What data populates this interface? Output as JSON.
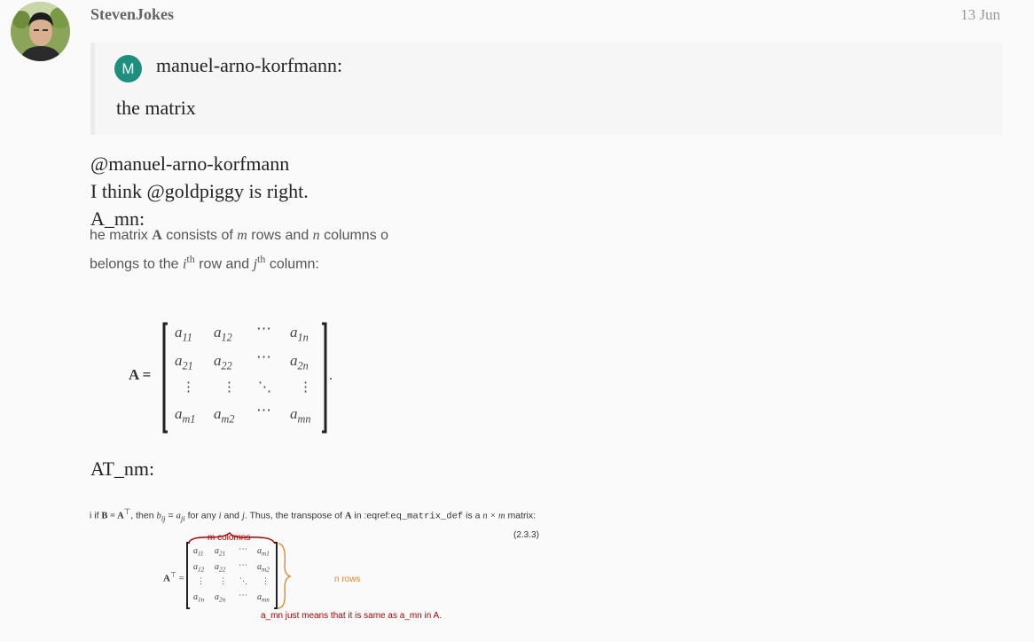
{
  "post": {
    "username": "StevenJokes",
    "date": "13 Jun",
    "avatar_icon": "user-avatar-photo"
  },
  "quote": {
    "avatar_letter": "M",
    "avatar_color": "#1e8e7e",
    "author": "manuel-arno-korfmann:",
    "text": "the matrix"
  },
  "body": {
    "line1": "@manuel-arno-korfmann",
    "line2": "I think @goldpiggy is right.",
    "line3": "A_mn:",
    "line4": "AT_nm:"
  },
  "screenshot1": {
    "text1_a": "he matrix ",
    "text1_b": "A",
    "text1_c": " consists of ",
    "text1_d": "m",
    "text1_e": " rows and ",
    "text1_f": "n",
    "text1_g": " columns o",
    "text2_a": "belongs to the ",
    "text2_b": "i",
    "text2_c": "th",
    "text2_d": " row and ",
    "text2_e": "j",
    "text2_f": "th",
    "text2_g": " column:",
    "lhs": "A =",
    "trailing": "."
  },
  "screenshot2": {
    "text_a": "i if ",
    "text_b": "B = A",
    "text_c": "⊤",
    "text_d": ", then ",
    "text_e": "b",
    "text_f": "ij",
    "text_g": " = ",
    "text_h": "a",
    "text_i": "ji",
    "text_j": " for any ",
    "text_k": "i",
    "text_l": " and ",
    "text_m": "j",
    "text_n": ". Thus, the transpose of ",
    "text_o": "A",
    "text_p": " in :eqref:",
    "text_q": "eq_matrix_def",
    "text_r": " is a ",
    "text_s": "n × m",
    "text_t": " matrix:",
    "eq_number": "(2.3.3)",
    "lhs": "A",
    "lhs_sup": "⊤",
    "lhs_eq": " =",
    "annot_cols": "m colomns",
    "annot_rows": "n rows",
    "annot_note": "a_mn just means that it is same as a_mn in A.",
    "annot_color_red": "#b00000",
    "annot_color_orange": "#e08a2c"
  }
}
